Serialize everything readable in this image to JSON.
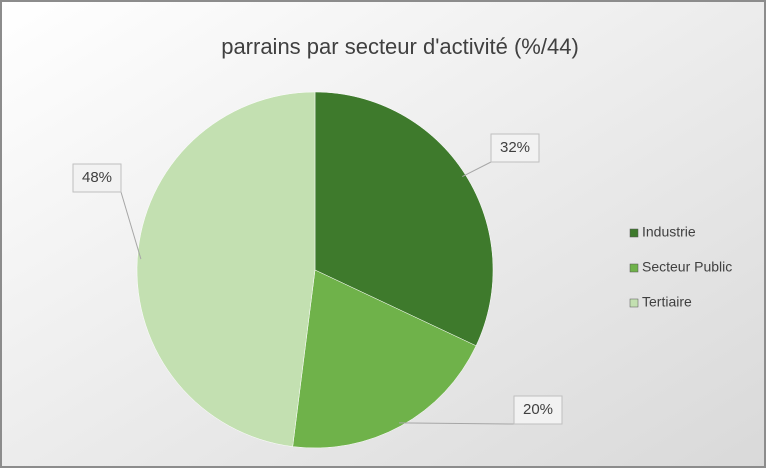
{
  "chart_data": {
    "type": "pie",
    "title": "parrains par secteur d'activité (%/44)",
    "categories": [
      "Industrie",
      "Secteur Public",
      "Tertiaire"
    ],
    "values": [
      32,
      20,
      48
    ],
    "value_labels": [
      "32%",
      "20%",
      "48%"
    ],
    "colors": [
      "#3e7a2c",
      "#6fb24a",
      "#c3e0b1"
    ],
    "legend": "right"
  }
}
